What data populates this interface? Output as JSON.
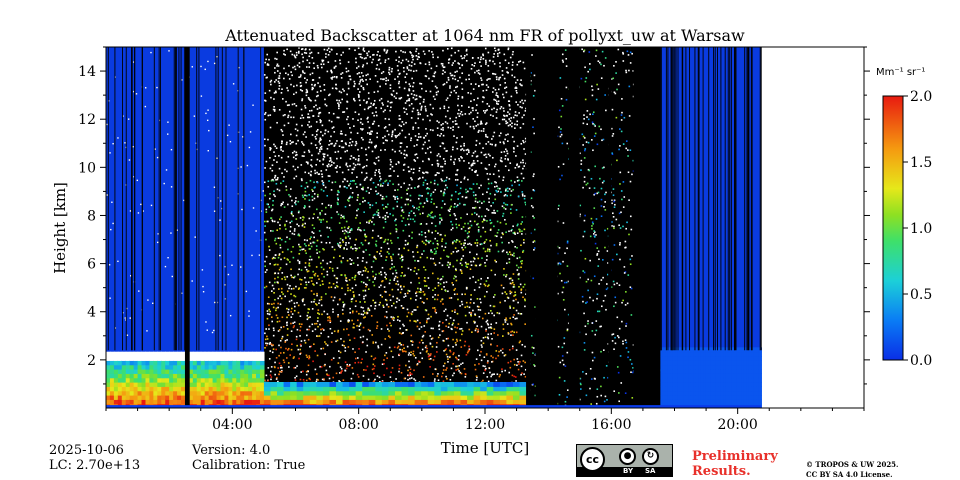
{
  "chart_data": {
    "type": "heatmap",
    "title": "Attenuated Backscatter at 1064 nm FR of pollyxt_uw at Warsaw",
    "xlabel": "Time [UTC]",
    "ylabel": "Height [km]",
    "xlim_hours": [
      0,
      24
    ],
    "ylim_km": [
      0,
      15
    ],
    "x_ticks": [
      "04:00",
      "08:00",
      "12:00",
      "16:00",
      "20:00"
    ],
    "x_tick_hours": [
      4,
      8,
      12,
      16,
      20
    ],
    "y_ticks": [
      "2",
      "4",
      "6",
      "8",
      "10",
      "12",
      "14"
    ],
    "y_tick_values": [
      2,
      4,
      6,
      8,
      10,
      12,
      14
    ],
    "colorbar": {
      "unit_label": "Mm⁻¹ sr⁻¹",
      "min": 0.0,
      "max": 2.0,
      "ticks": [
        "0.0",
        "0.5",
        "1.0",
        "1.5",
        "2.0"
      ],
      "tick_values": [
        0.0,
        0.5,
        1.0,
        1.5,
        2.0
      ],
      "colormap": "jet"
    },
    "data_coverage_hours": [
      0,
      20.75
    ],
    "profile_gaps_hours": [
      [
        2.5,
        2.65
      ],
      [
        13.3,
        13.45
      ],
      [
        13.6,
        14.3
      ],
      [
        14.65,
        15.0
      ],
      [
        15.9,
        16.0
      ],
      [
        16.7,
        17.55
      ]
    ],
    "regimes": [
      {
        "from_h": 0,
        "to_h": 5.0,
        "description": "clear sky, low signal above boundary layer",
        "boundary_layer_top_km": 2.3
      },
      {
        "from_h": 5.0,
        "to_h": 13.3,
        "description": "noisy daytime profiles with aerosol up to ~9 km",
        "boundary_layer_top_km": 1.0
      },
      {
        "from_h": 17.55,
        "to_h": 20.75,
        "description": "low signal",
        "boundary_layer_top_km": 2.5
      }
    ],
    "colors": {
      "background_signal": "#0a3be0",
      "gap": "#000000",
      "noise": "#ffffff"
    }
  },
  "footer": {
    "date": "2025-10-06",
    "lc": "LC: 2.70e+13",
    "version": "Version: 4.0",
    "calibration": "Calibration: True",
    "preliminary_line1": "Preliminary",
    "preliminary_line2": "Results.",
    "copyright_line1": "© TROPOS & UW 2025.",
    "copyright_line2": "CC BY SA 4.0 License.",
    "license_badge": {
      "cc": "cc",
      "by": "BY",
      "sa": "SA"
    }
  }
}
